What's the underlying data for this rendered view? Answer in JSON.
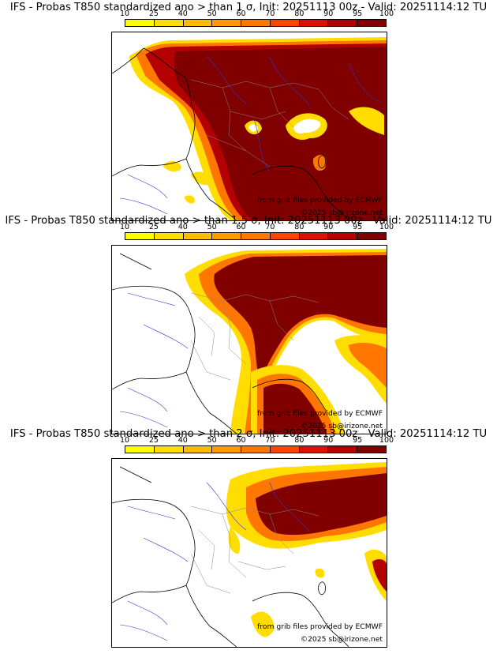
{
  "colorbar": {
    "ticks": [
      "10",
      "25",
      "40",
      "50",
      "60",
      "70",
      "80",
      "90",
      "95",
      "100"
    ],
    "colors": [
      "#ffff00",
      "#ffdd00",
      "#ffbb00",
      "#ff9900",
      "#ff7700",
      "#ff4400",
      "#dd1100",
      "#b30000",
      "#800000"
    ]
  },
  "panels": [
    {
      "title": "IFS - Probas T850  standardized ano > than 1 σ, Init: 20251113 00z - Valid: 20251114:12 TU",
      "credit_grib": "from grib files provided by ECMWF",
      "credit_copy": "©2025 sb@irizone.net"
    },
    {
      "title": "IFS - Probas T850  standardized ano > than 1.5 σ, Init: 20251113 00z - Valid: 20251114:12 TU",
      "credit_grib": "from grib files provided by ECMWF",
      "credit_copy": "©2025 sb@irizone.net"
    },
    {
      "title": "IFS - Probas T850  standardized ano > than 2 σ, Init: 20251113 00z - Valid: 20251114:12 TU",
      "credit_grib": "from grib files provided by ECMWF",
      "credit_copy": "©2025 sb@irizone.net"
    }
  ],
  "map_colors": {
    "rivers": "#3333cc",
    "borders": "#888888",
    "coast": "#000000"
  }
}
